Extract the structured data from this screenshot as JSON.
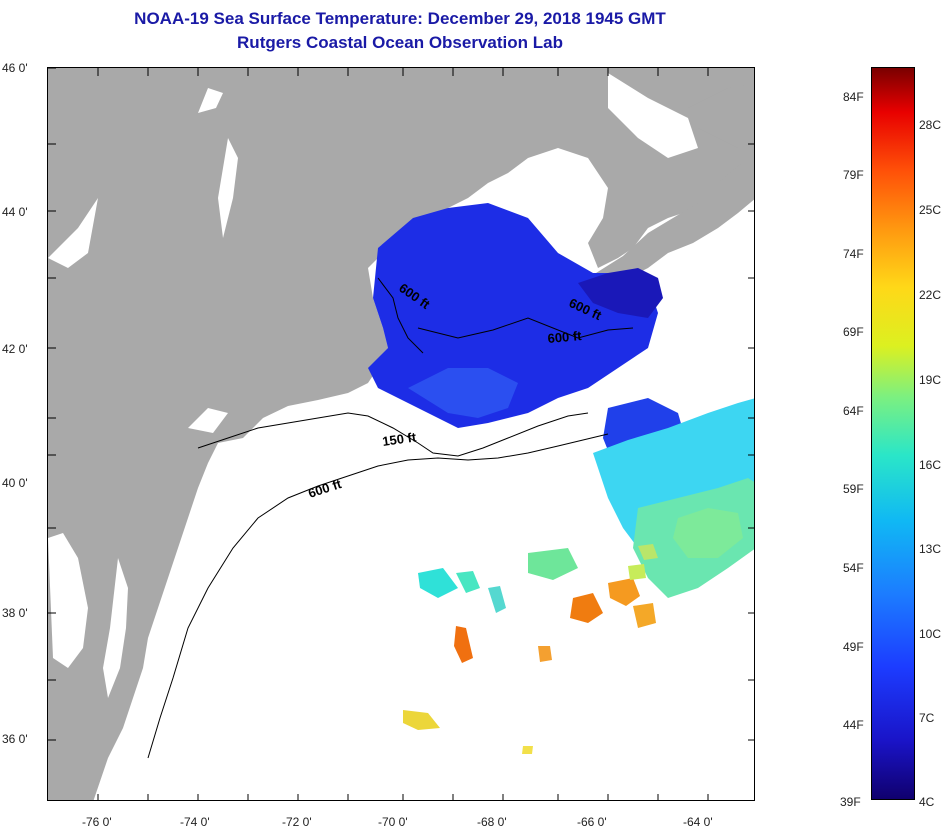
{
  "header": {
    "title": "NOAA-19 Sea Surface Temperature:  December 29, 2018 1945 GMT",
    "subtitle": "Rutgers Coastal Ocean Observation Lab"
  },
  "map": {
    "lat_ticks": [
      "46 0'",
      "44 0'",
      "42 0'",
      "40 0'",
      "38 0'",
      "36 0'"
    ],
    "lon_ticks": [
      "-76 0'",
      "-74 0'",
      "-72 0'",
      "-70 0'",
      "-68 0'",
      "-66 0'",
      "-64 0'"
    ],
    "isobaths": [
      "600 ft",
      "600 ft",
      "600 ft",
      "150 ft",
      "600 ft"
    ],
    "land_color": "#a9a9a9",
    "ocean_color": "#ffffff"
  },
  "colorbar": {
    "fahrenheit": [
      "84F",
      "79F",
      "74F",
      "69F",
      "64F",
      "59F",
      "54F",
      "49F",
      "44F",
      "39F"
    ],
    "celsius": [
      "28C",
      "25C",
      "22C",
      "19C",
      "16C",
      "13C",
      "10C",
      "7C",
      "4C"
    ]
  }
}
